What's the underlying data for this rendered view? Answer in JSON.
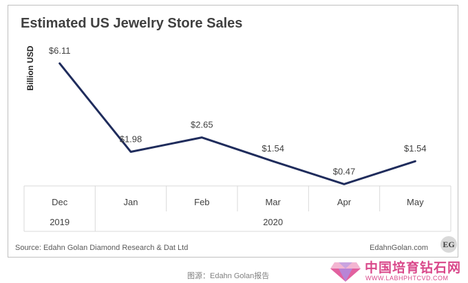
{
  "chart_data": {
    "type": "line",
    "title": "Estimated US Jewelry Store Sales",
    "ylabel": "Billion USD",
    "categories": [
      "Dec",
      "Jan",
      "Feb",
      "Mar",
      "Apr",
      "May"
    ],
    "year_groups": [
      {
        "label": "2019",
        "span": 1
      },
      {
        "label": "2020",
        "span": 5
      }
    ],
    "series": [
      {
        "values": [
          6.11,
          1.98,
          2.65,
          1.54,
          0.47,
          1.54
        ],
        "labels": [
          "$6.11",
          "$1.98",
          "$2.65",
          "$1.54",
          "$0.47",
          "$1.54"
        ]
      }
    ],
    "ylim": [
      0,
      6.5
    ],
    "grid": false,
    "line_color": "#1f2c5c"
  },
  "footer": {
    "source": "Source: Edahn Golan Diamond Research & Dat Ltd",
    "site": "EdahnGolan.com",
    "logo_text": "EG"
  },
  "caption": "图源：Edahn Golan报告",
  "watermark": {
    "name": "中国培育钻石网",
    "url": "WWW.LABHPHTCVD.COM"
  }
}
